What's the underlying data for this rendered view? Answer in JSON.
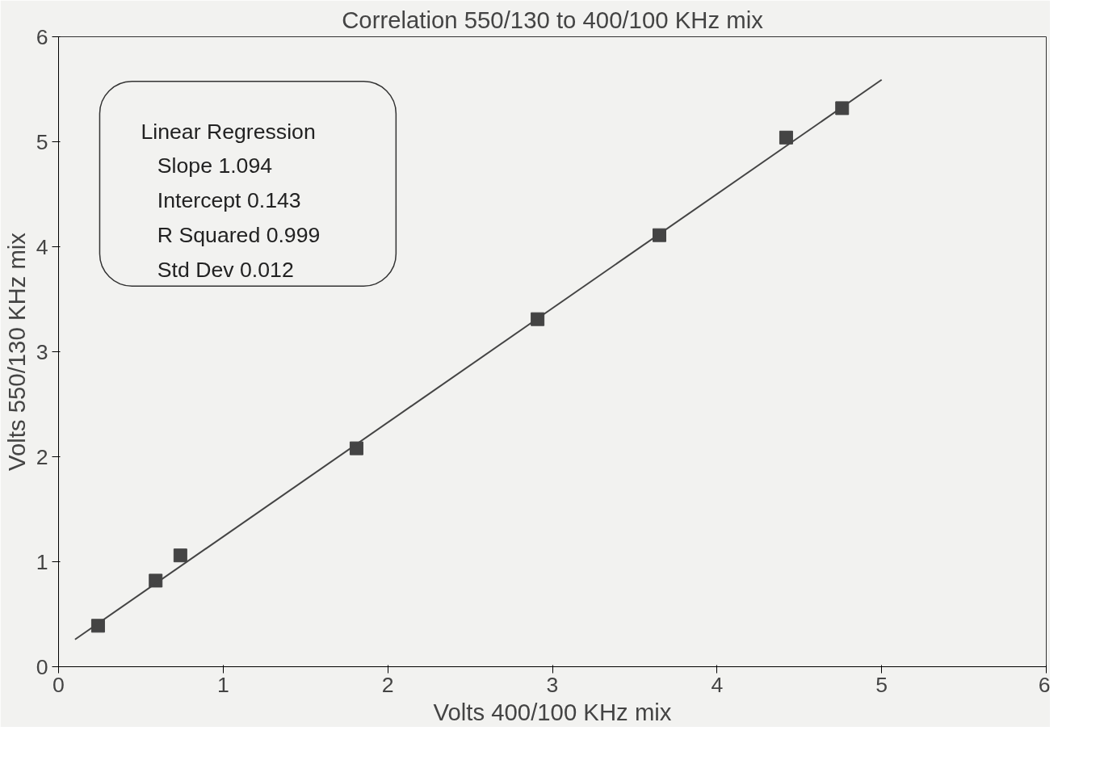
{
  "chart_data": {
    "type": "scatter",
    "title": "Correlation 550/130 to 400/100 KHz mix",
    "xlabel": "Volts 400/100 KHz mix",
    "ylabel": "Volts 550/130 KHz mix",
    "x": [
      0.24,
      0.59,
      0.74,
      1.81,
      2.91,
      3.65,
      4.42,
      4.76
    ],
    "series": [
      {
        "color": "#444444",
        "values": [
          0.39,
          0.82,
          1.06,
          2.08,
          3.31,
          4.11,
          5.04,
          5.32
        ]
      },
      {
        "type": "line",
        "color": "#444444",
        "x": [
          0.1,
          5.0
        ],
        "values": [
          0.26,
          5.59
        ],
        "marker": "none"
      }
    ],
    "marker": "square",
    "line_style": "solid",
    "grid": false,
    "xlim": [
      0,
      6
    ],
    "ylim": [
      0,
      6
    ],
    "xticks": [
      0,
      1,
      2,
      3,
      4,
      5,
      6
    ],
    "yticks": [
      0,
      1,
      2,
      3,
      4,
      5,
      6
    ],
    "annotations": [
      "Linear Regression",
      "Slope 1.094",
      "Intercept 0.143",
      "R Squared 0.999",
      "Std Dev 0.012"
    ]
  }
}
